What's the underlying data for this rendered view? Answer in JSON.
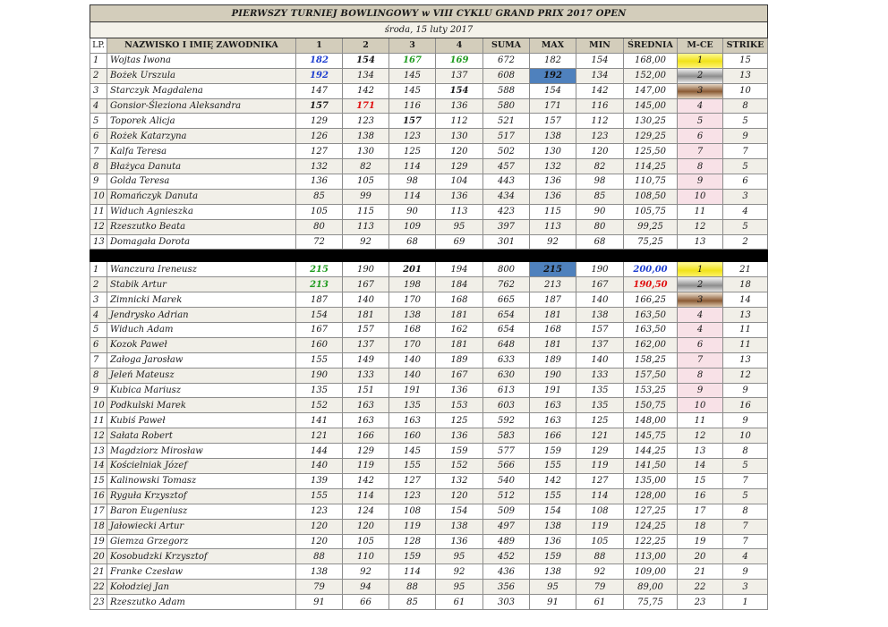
{
  "title": "PIERWSZY TURNIEJ BOWLINGOWY w VIII CYKLU GRAND PRIX 2017 OPEN",
  "date": "środa, 15 luty 2017",
  "headers": [
    "LP.",
    "NAZWISKO I IMIĘ ZAWODNIKA",
    "1",
    "2",
    "3",
    "4",
    "SUMA",
    "MAX",
    "MIN",
    "ŚREDNIA",
    "M-CE",
    "STRIKE"
  ],
  "colors": {
    "header_bg": "#d3cdbb",
    "max_highlight": "#4f81bd",
    "gold": "#f0e21a",
    "silver": "#8d8d8d",
    "bronze": "#8a5a34",
    "pink": "#f8e1e7",
    "blue_text": "#1f3fd0",
    "green_text": "#1f9b1f",
    "red_text": "#e01010"
  },
  "women": [
    {
      "lp": "1",
      "name": "Wojtas Iwona",
      "g1": "182",
      "g2": "154",
      "g3": "167",
      "g4": "169",
      "suma": "672",
      "max": "182",
      "min": "154",
      "srednia": "168,00",
      "mce": "1",
      "strike": "15"
    },
    {
      "lp": "2",
      "name": "Bożek Urszula",
      "g1": "192",
      "g2": "134",
      "g3": "145",
      "g4": "137",
      "suma": "608",
      "max": "192",
      "min": "134",
      "srednia": "152,00",
      "mce": "2",
      "strike": "13"
    },
    {
      "lp": "3",
      "name": "Starczyk Magdalena",
      "g1": "147",
      "g2": "142",
      "g3": "145",
      "g4": "154",
      "suma": "588",
      "max": "154",
      "min": "142",
      "srednia": "147,00",
      "mce": "3",
      "strike": "10"
    },
    {
      "lp": "4",
      "name": "Gonsior-Śleziona Aleksandra",
      "g1": "157",
      "g2": "171",
      "g3": "116",
      "g4": "136",
      "suma": "580",
      "max": "171",
      "min": "116",
      "srednia": "145,00",
      "mce": "4",
      "strike": "8"
    },
    {
      "lp": "5",
      "name": "Toporek Alicja",
      "g1": "129",
      "g2": "123",
      "g3": "157",
      "g4": "112",
      "suma": "521",
      "max": "157",
      "min": "112",
      "srednia": "130,25",
      "mce": "5",
      "strike": "5"
    },
    {
      "lp": "6",
      "name": "Rożek Katarzyna",
      "g1": "126",
      "g2": "138",
      "g3": "123",
      "g4": "130",
      "suma": "517",
      "max": "138",
      "min": "123",
      "srednia": "129,25",
      "mce": "6",
      "strike": "9"
    },
    {
      "lp": "7",
      "name": "Kalfa Teresa",
      "g1": "127",
      "g2": "130",
      "g3": "125",
      "g4": "120",
      "suma": "502",
      "max": "130",
      "min": "120",
      "srednia": "125,50",
      "mce": "7",
      "strike": "7"
    },
    {
      "lp": "8",
      "name": "Błażyca Danuta",
      "g1": "132",
      "g2": "82",
      "g3": "114",
      "g4": "129",
      "suma": "457",
      "max": "132",
      "min": "82",
      "srednia": "114,25",
      "mce": "8",
      "strike": "5"
    },
    {
      "lp": "9",
      "name": "Golda Teresa",
      "g1": "136",
      "g2": "105",
      "g3": "98",
      "g4": "104",
      "suma": "443",
      "max": "136",
      "min": "98",
      "srednia": "110,75",
      "mce": "9",
      "strike": "6"
    },
    {
      "lp": "10",
      "name": "Romańczyk Danuta",
      "g1": "85",
      "g2": "99",
      "g3": "114",
      "g4": "136",
      "suma": "434",
      "max": "136",
      "min": "85",
      "srednia": "108,50",
      "mce": "10",
      "strike": "3"
    },
    {
      "lp": "11",
      "name": "Widuch Agnieszka",
      "g1": "105",
      "g2": "115",
      "g3": "90",
      "g4": "113",
      "suma": "423",
      "max": "115",
      "min": "90",
      "srednia": "105,75",
      "mce": "11",
      "strike": "4"
    },
    {
      "lp": "12",
      "name": "Rzeszutko Beata",
      "g1": "80",
      "g2": "113",
      "g3": "109",
      "g4": "95",
      "suma": "397",
      "max": "113",
      "min": "80",
      "srednia": "99,25",
      "mce": "12",
      "strike": "5"
    },
    {
      "lp": "13",
      "name": "Domagała Dorota",
      "g1": "72",
      "g2": "92",
      "g3": "68",
      "g4": "69",
      "suma": "301",
      "max": "92",
      "min": "68",
      "srednia": "75,25",
      "mce": "13",
      "strike": "2"
    }
  ],
  "men": [
    {
      "lp": "1",
      "name": "Wanczura Ireneusz",
      "g1": "215",
      "g2": "190",
      "g3": "201",
      "g4": "194",
      "suma": "800",
      "max": "215",
      "min": "190",
      "srednia": "200,00",
      "mce": "1",
      "strike": "21"
    },
    {
      "lp": "2",
      "name": "Stabik Artur",
      "g1": "213",
      "g2": "167",
      "g3": "198",
      "g4": "184",
      "suma": "762",
      "max": "213",
      "min": "167",
      "srednia": "190,50",
      "mce": "2",
      "strike": "18"
    },
    {
      "lp": "3",
      "name": "Zimnicki Marek",
      "g1": "187",
      "g2": "140",
      "g3": "170",
      "g4": "168",
      "suma": "665",
      "max": "187",
      "min": "140",
      "srednia": "166,25",
      "mce": "3",
      "strike": "14"
    },
    {
      "lp": "4",
      "name": "Jendrysko Adrian",
      "g1": "154",
      "g2": "181",
      "g3": "138",
      "g4": "181",
      "suma": "654",
      "max": "181",
      "min": "138",
      "srednia": "163,50",
      "mce": "4",
      "strike": "13"
    },
    {
      "lp": "5",
      "name": "Widuch Adam",
      "g1": "167",
      "g2": "157",
      "g3": "168",
      "g4": "162",
      "suma": "654",
      "max": "168",
      "min": "157",
      "srednia": "163,50",
      "mce": "4",
      "strike": "11"
    },
    {
      "lp": "6",
      "name": "Kozok Paweł",
      "g1": "160",
      "g2": "137",
      "g3": "170",
      "g4": "181",
      "suma": "648",
      "max": "181",
      "min": "137",
      "srednia": "162,00",
      "mce": "6",
      "strike": "11"
    },
    {
      "lp": "7",
      "name": "Załoga Jarosław",
      "g1": "155",
      "g2": "149",
      "g3": "140",
      "g4": "189",
      "suma": "633",
      "max": "189",
      "min": "140",
      "srednia": "158,25",
      "mce": "7",
      "strike": "13"
    },
    {
      "lp": "8",
      "name": "Jeleń Mateusz",
      "g1": "190",
      "g2": "133",
      "g3": "140",
      "g4": "167",
      "suma": "630",
      "max": "190",
      "min": "133",
      "srednia": "157,50",
      "mce": "8",
      "strike": "12"
    },
    {
      "lp": "9",
      "name": "Kubica Mariusz",
      "g1": "135",
      "g2": "151",
      "g3": "191",
      "g4": "136",
      "suma": "613",
      "max": "191",
      "min": "135",
      "srednia": "153,25",
      "mce": "9",
      "strike": "9"
    },
    {
      "lp": "10",
      "name": "Podkulski Marek",
      "g1": "152",
      "g2": "163",
      "g3": "135",
      "g4": "153",
      "suma": "603",
      "max": "163",
      "min": "135",
      "srednia": "150,75",
      "mce": "10",
      "strike": "16"
    },
    {
      "lp": "11",
      "name": "Kubiś Paweł",
      "g1": "141",
      "g2": "163",
      "g3": "163",
      "g4": "125",
      "suma": "592",
      "max": "163",
      "min": "125",
      "srednia": "148,00",
      "mce": "11",
      "strike": "9"
    },
    {
      "lp": "12",
      "name": "Sałata Robert",
      "g1": "121",
      "g2": "166",
      "g3": "160",
      "g4": "136",
      "suma": "583",
      "max": "166",
      "min": "121",
      "srednia": "145,75",
      "mce": "12",
      "strike": "10"
    },
    {
      "lp": "13",
      "name": "Magdziorz Mirosław",
      "g1": "144",
      "g2": "129",
      "g3": "145",
      "g4": "159",
      "suma": "577",
      "max": "159",
      "min": "129",
      "srednia": "144,25",
      "mce": "13",
      "strike": "8"
    },
    {
      "lp": "14",
      "name": "Kościelniak Józef",
      "g1": "140",
      "g2": "119",
      "g3": "155",
      "g4": "152",
      "suma": "566",
      "max": "155",
      "min": "119",
      "srednia": "141,50",
      "mce": "14",
      "strike": "5"
    },
    {
      "lp": "15",
      "name": "Kalinowski Tomasz",
      "g1": "139",
      "g2": "142",
      "g3": "127",
      "g4": "132",
      "suma": "540",
      "max": "142",
      "min": "127",
      "srednia": "135,00",
      "mce": "15",
      "strike": "7"
    },
    {
      "lp": "16",
      "name": "Ryguła Krzysztof",
      "g1": "155",
      "g2": "114",
      "g3": "123",
      "g4": "120",
      "suma": "512",
      "max": "155",
      "min": "114",
      "srednia": "128,00",
      "mce": "16",
      "strike": "5"
    },
    {
      "lp": "17",
      "name": "Baron Eugeniusz",
      "g1": "123",
      "g2": "124",
      "g3": "108",
      "g4": "154",
      "suma": "509",
      "max": "154",
      "min": "108",
      "srednia": "127,25",
      "mce": "17",
      "strike": "8"
    },
    {
      "lp": "18",
      "name": "Jałowiecki Artur",
      "g1": "120",
      "g2": "120",
      "g3": "119",
      "g4": "138",
      "suma": "497",
      "max": "138",
      "min": "119",
      "srednia": "124,25",
      "mce": "18",
      "strike": "7"
    },
    {
      "lp": "19",
      "name": "Giemza Grzegorz",
      "g1": "120",
      "g2": "105",
      "g3": "128",
      "g4": "136",
      "suma": "489",
      "max": "136",
      "min": "105",
      "srednia": "122,25",
      "mce": "19",
      "strike": "7"
    },
    {
      "lp": "20",
      "name": "Kosobudzki Krzysztof",
      "g1": "88",
      "g2": "110",
      "g3": "159",
      "g4": "95",
      "suma": "452",
      "max": "159",
      "min": "88",
      "srednia": "113,00",
      "mce": "20",
      "strike": "4"
    },
    {
      "lp": "21",
      "name": "Franke Czesław",
      "g1": "138",
      "g2": "92",
      "g3": "114",
      "g4": "92",
      "suma": "436",
      "max": "138",
      "min": "92",
      "srednia": "109,00",
      "mce": "21",
      "strike": "9"
    },
    {
      "lp": "22",
      "name": "Kołodziej Jan",
      "g1": "79",
      "g2": "94",
      "g3": "88",
      "g4": "95",
      "suma": "356",
      "max": "95",
      "min": "79",
      "srednia": "89,00",
      "mce": "22",
      "strike": "3"
    },
    {
      "lp": "23",
      "name": "Rzeszutko Adam",
      "g1": "91",
      "g2": "66",
      "g3": "85",
      "g4": "61",
      "suma": "303",
      "max": "91",
      "min": "61",
      "srednia": "75,75",
      "mce": "23",
      "strike": "1"
    }
  ]
}
